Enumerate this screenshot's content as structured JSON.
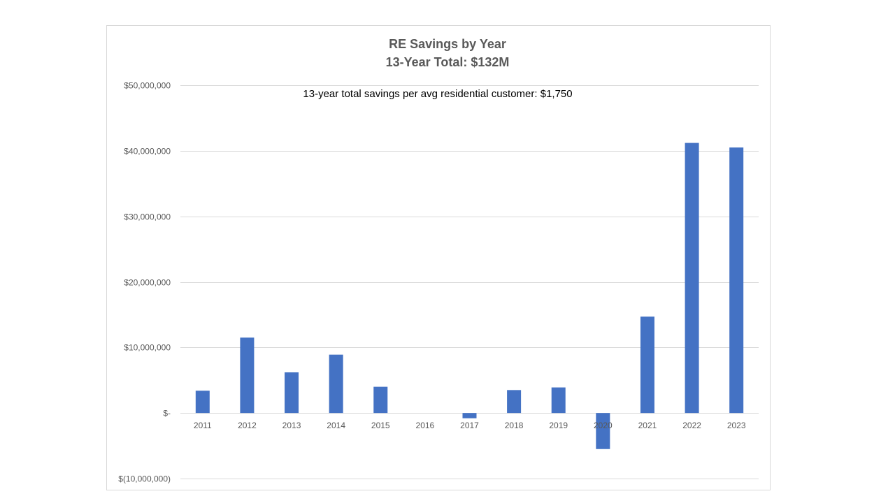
{
  "chart_data": {
    "type": "bar",
    "title": "RE Savings by Year",
    "subtitle": "13-Year Total:  $132M",
    "annotation": "13-year total savings per avg residential customer:  $1,750",
    "xlabel": "",
    "ylabel": "",
    "categories": [
      "2011",
      "2012",
      "2013",
      "2014",
      "2015",
      "2016",
      "2017",
      "2018",
      "2019",
      "2020",
      "2021",
      "2022",
      "2023"
    ],
    "values": [
      3400000,
      11500000,
      6200000,
      8900000,
      4000000,
      0,
      -800000,
      3500000,
      3900000,
      -5500000,
      14700000,
      41200000,
      40500000
    ],
    "ylim": [
      -10000000,
      50000000
    ],
    "yticks": [
      -10000000,
      0,
      10000000,
      20000000,
      30000000,
      40000000,
      50000000
    ],
    "ytick_labels": [
      "$(10,000,000)",
      "$-",
      "$10,000,000",
      "$20,000,000",
      "$30,000,000",
      "$40,000,000",
      "$50,000,000"
    ],
    "grid": true,
    "legend": "none",
    "bar_color": "#4472c4",
    "grid_color": "#d9d9d9"
  }
}
